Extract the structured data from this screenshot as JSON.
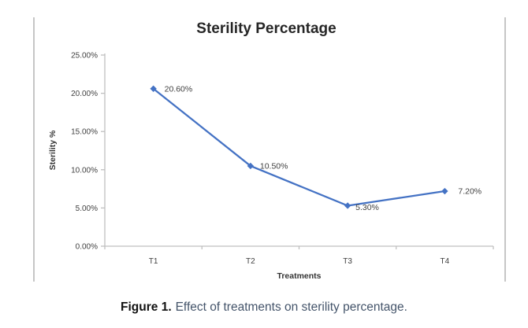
{
  "figure": {
    "caption_label": "Figure 1.",
    "caption_text": "Effect of treatments on sterility percentage."
  },
  "chart_data": {
    "type": "line",
    "title": "Sterility Percentage",
    "xlabel": "Treatments",
    "ylabel": "Sterility %",
    "categories": [
      "T1",
      "T2",
      "T3",
      "T4"
    ],
    "series": [
      {
        "name": "Sterility %",
        "values": [
          20.6,
          10.5,
          5.3,
          7.2
        ],
        "point_labels": [
          "20.60%",
          "10.50%",
          "5.30%",
          "7.20%"
        ],
        "color": "#4472c4"
      }
    ],
    "ylim": [
      0,
      25
    ],
    "y_tick_values": [
      0,
      5,
      10,
      15,
      20,
      25
    ],
    "y_tick_labels": [
      "0.00%",
      "5.00%",
      "10.00%",
      "15.00%",
      "20.00%",
      "25.00%"
    ],
    "grid": false,
    "legend": "none",
    "marker": "diamond",
    "axis_color": "#bfbfbf",
    "tick_label_color": "#3f3f3f",
    "data_label_color": "#3f3f3f"
  },
  "colors": {
    "frame_border": "#c6c6c6",
    "title": "#262626",
    "caption_label": "#111111",
    "caption_text": "#44546a",
    "background": "#ffffff"
  }
}
